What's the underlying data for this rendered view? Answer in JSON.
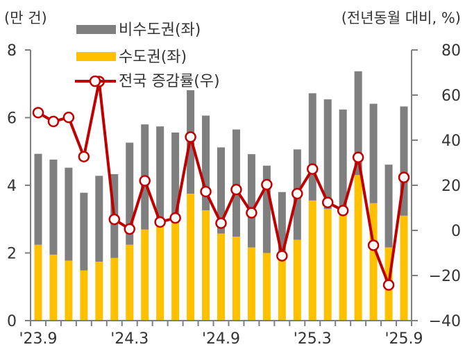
{
  "chart_data": {
    "type": "bar+line",
    "title": "",
    "left_axis": {
      "unit_label": "(만 건)",
      "range": [
        0,
        8
      ],
      "ticks": [
        "0",
        "2",
        "4",
        "6",
        "8"
      ]
    },
    "right_axis": {
      "unit_label": "(전년동월 대비, %)",
      "range": [
        -40,
        80
      ],
      "ticks": [
        "-40",
        "-20",
        "0",
        "20",
        "40",
        "60",
        "80"
      ]
    },
    "categories": [
      "'23.9",
      "'23.10",
      "'23.11",
      "'23.12",
      "'24.1",
      "'24.2",
      "'24.3",
      "'24.4",
      "'24.5",
      "'24.6",
      "'24.7",
      "'24.8",
      "'24.9",
      "'24.10",
      "'24.11",
      "'24.12",
      "'25.1",
      "'25.2",
      "'25.3",
      "'25.4",
      "'25.5",
      "'25.6",
      "'25.7",
      "'25.8",
      "'25.9"
    ],
    "x_tick_labels": [
      {
        "index": 0,
        "label": "'23.9"
      },
      {
        "index": 6,
        "label": "'24.3"
      },
      {
        "index": 12,
        "label": "'24.9"
      },
      {
        "index": 18,
        "label": "'25.3"
      },
      {
        "index": 24,
        "label": "'25.9"
      }
    ],
    "series": [
      {
        "name": "수도권(좌)",
        "type": "stacked-bar",
        "axis": "left",
        "color": "#FFC000",
        "values": [
          2.24,
          1.95,
          1.77,
          1.48,
          1.74,
          1.85,
          2.24,
          2.69,
          2.78,
          2.89,
          3.75,
          3.26,
          2.57,
          2.48,
          2.16,
          2.0,
          1.82,
          2.39,
          3.55,
          3.3,
          3.12,
          4.3,
          3.47,
          2.16,
          3.1
        ]
      },
      {
        "name": "비수도권(좌)",
        "type": "stacked-bar",
        "axis": "left",
        "color": "#7F7F7F",
        "values": [
          2.69,
          2.81,
          2.75,
          2.3,
          2.54,
          2.48,
          3.02,
          3.11,
          2.96,
          2.67,
          3.06,
          2.8,
          2.55,
          3.17,
          2.76,
          2.58,
          1.98,
          2.67,
          3.17,
          3.24,
          3.12,
          3.07,
          2.94,
          2.45,
          3.23
        ]
      },
      {
        "name": "전국 증감률(우)",
        "type": "line",
        "axis": "right",
        "color": "#C00000",
        "marker": "hollow-circle",
        "values": [
          52.2,
          48.3,
          50.1,
          32.7,
          66.0,
          4.9,
          0.6,
          22.0,
          3.7,
          5.5,
          41.4,
          17.2,
          3.2,
          18.1,
          7.8,
          20.3,
          -11.3,
          16.3,
          27.2,
          12.4,
          8.8,
          32.4,
          -6.6,
          -24.2,
          23.5
        ]
      }
    ],
    "legend": {
      "position": "top-left",
      "items": [
        {
          "label": "비수도권(좌)",
          "kind": "bar",
          "color": "#7F7F7F"
        },
        {
          "label": "수도권(좌)",
          "kind": "bar",
          "color": "#FFC000"
        },
        {
          "label": "전국 증감률(우)",
          "kind": "line-marker",
          "color": "#C00000"
        }
      ]
    },
    "grid": false
  }
}
